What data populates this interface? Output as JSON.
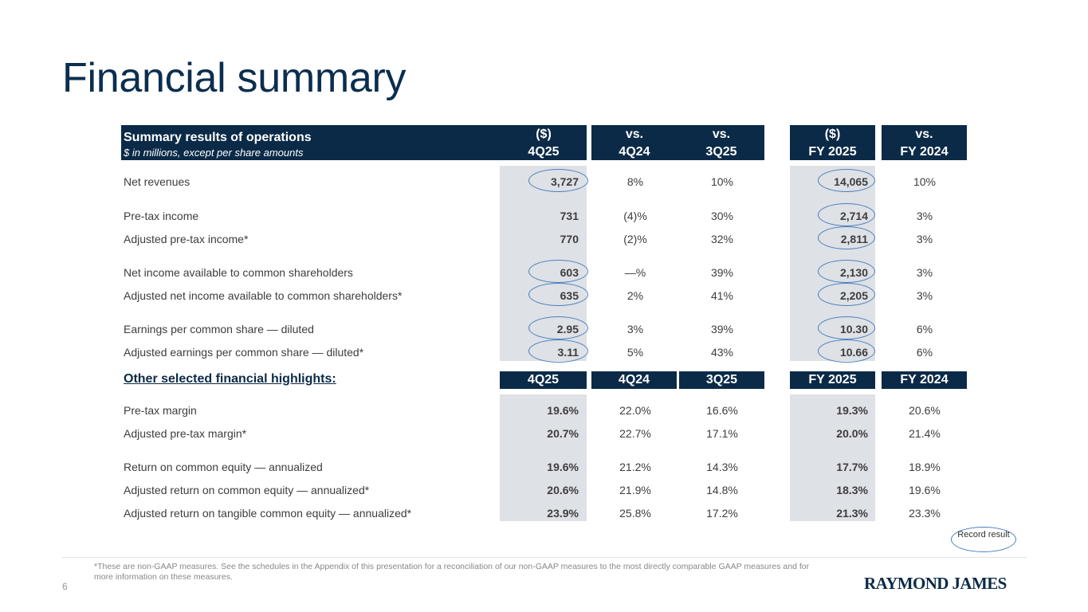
{
  "title": "Financial summary",
  "summary": {
    "header": {
      "title": "Summary results of operations",
      "subtitle": "$ in millions, except per share amounts",
      "col_4q25_a": "($)",
      "col_4q25_b": "4Q25",
      "col_4q24_a": "vs.",
      "col_4q24_b": "4Q24",
      "col_3q25_a": "vs.",
      "col_3q25_b": "3Q25",
      "col_fy25_a": "($)",
      "col_fy25_b": "FY 2025",
      "col_fy24_a": "vs.",
      "col_fy24_b": "FY 2024"
    },
    "rows": [
      {
        "label": "Net revenues",
        "q4_25": "3,727",
        "vs_q4_24": "8%",
        "vs_q3_25": "10%",
        "fy25": "14,065",
        "vs_fy24": "10%"
      },
      {
        "label": "Pre-tax income",
        "q4_25": "731",
        "vs_q4_24": "(4)%",
        "vs_q3_25": "30%",
        "fy25": "2,714",
        "vs_fy24": "3%"
      },
      {
        "label": "Adjusted pre-tax income*",
        "q4_25": "770",
        "vs_q4_24": "(2)%",
        "vs_q3_25": "32%",
        "fy25": "2,811",
        "vs_fy24": "3%"
      },
      {
        "label": "Net income available to common shareholders",
        "q4_25": "603",
        "vs_q4_24": "—%",
        "vs_q3_25": "39%",
        "fy25": "2,130",
        "vs_fy24": "3%"
      },
      {
        "label": "Adjusted net income available to common shareholders*",
        "q4_25": "635",
        "vs_q4_24": "2%",
        "vs_q3_25": "41%",
        "fy25": "2,205",
        "vs_fy24": "3%"
      },
      {
        "label": "Earnings per common share — diluted",
        "q4_25": "2.95",
        "vs_q4_24": "3%",
        "vs_q3_25": "39%",
        "fy25": "10.30",
        "vs_fy24": "6%"
      },
      {
        "label": "Adjusted earnings per common share — diluted*",
        "q4_25": "3.11",
        "vs_q4_24": "5%",
        "vs_q3_25": "43%",
        "fy25": "10.66",
        "vs_fy24": "6%"
      }
    ]
  },
  "highlights": {
    "label": "Other selected financial highlights:",
    "cols": [
      "4Q25",
      "4Q24",
      "3Q25",
      "FY 2025",
      "FY 2024"
    ],
    "rows": [
      {
        "label": "Pre-tax margin",
        "q4_25": "19.6%",
        "q4_24": "22.0%",
        "q3_25": "16.6%",
        "fy25": "19.3%",
        "fy24": "20.6%"
      },
      {
        "label": "Adjusted pre-tax margin*",
        "q4_25": "20.7%",
        "q4_24": "22.7%",
        "q3_25": "17.1%",
        "fy25": "20.0%",
        "fy24": "21.4%"
      },
      {
        "label": "Return on common equity — annualized",
        "q4_25": "19.6%",
        "q4_24": "21.2%",
        "q3_25": "14.3%",
        "fy25": "17.7%",
        "fy24": "18.9%"
      },
      {
        "label": "Adjusted return on common equity — annualized*",
        "q4_25": "20.6%",
        "q4_24": "21.9%",
        "q3_25": "14.8%",
        "fy25": "18.3%",
        "fy24": "19.6%"
      },
      {
        "label": "Adjusted return on tangible common equity — annualized*",
        "q4_25": "23.9%",
        "q4_24": "25.8%",
        "q3_25": "17.2%",
        "fy25": "21.3%",
        "fy24": "23.3%"
      }
    ]
  },
  "record_badge": "Record result",
  "footnote": "*These are non-GAAP measures. See the schedules in the Appendix of this presentation for a reconciliation of our non-GAAP measures to the most directly comparable GAAP measures and for more information on these measures.",
  "page_number": "6",
  "logo_text": "RAYMOND JAMES",
  "colors": {
    "navy": "#0b2a47",
    "shade": "#dee1e5",
    "oval": "#4a7fc0",
    "title": "#0b2e4f"
  }
}
